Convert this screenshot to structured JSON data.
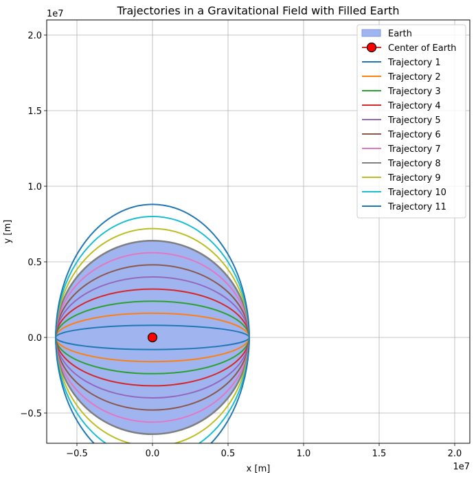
{
  "chart_data": {
    "type": "line",
    "title": "Trajectories in a Gravitational Field with Filled Earth",
    "xlabel": "x [m]",
    "ylabel": "y [m]",
    "x_offset_label": "1e7",
    "y_offset_label": "1e7",
    "xlim": [
      -0.7,
      2.1
    ],
    "ylim": [
      -0.7,
      2.1
    ],
    "x_ticks": [
      -0.5,
      0.0,
      0.5,
      1.0,
      1.5,
      2.0
    ],
    "x_tick_labels": [
      "−0.5",
      "0.0",
      "0.5",
      "1.0",
      "1.5",
      "2.0"
    ],
    "y_ticks": [
      -0.5,
      0.0,
      0.5,
      1.0,
      1.5,
      2.0
    ],
    "y_tick_labels": [
      "−0.5",
      "0.0",
      "0.5",
      "1.0",
      "1.5",
      "2.0"
    ],
    "grid": true,
    "legend_position": "top-right",
    "earth": {
      "label": "Earth",
      "radius": 0.64,
      "fill_color": "#a0b4f0",
      "edge_color": "#7f7f7f"
    },
    "center": {
      "label": "Center of Earth",
      "x": 0.0,
      "y": 0.0,
      "marker_color": "#ff0000",
      "line_color": "#d62728"
    },
    "series": [
      {
        "name": "Trajectory 1",
        "color": "#1f77b4",
        "semi_x": 0.64,
        "semi_y": 0.08
      },
      {
        "name": "Trajectory 2",
        "color": "#ff7f0e",
        "semi_x": 0.64,
        "semi_y": 0.16
      },
      {
        "name": "Trajectory 3",
        "color": "#2ca02c",
        "semi_x": 0.64,
        "semi_y": 0.24
      },
      {
        "name": "Trajectory 4",
        "color": "#d62728",
        "semi_x": 0.64,
        "semi_y": 0.32
      },
      {
        "name": "Trajectory 5",
        "color": "#9467bd",
        "semi_x": 0.64,
        "semi_y": 0.4
      },
      {
        "name": "Trajectory 6",
        "color": "#8c564b",
        "semi_x": 0.64,
        "semi_y": 0.48
      },
      {
        "name": "Trajectory 7",
        "color": "#e377c2",
        "semi_x": 0.64,
        "semi_y": 0.56
      },
      {
        "name": "Trajectory 8",
        "color": "#7f7f7f",
        "semi_x": 0.64,
        "semi_y": 0.64
      },
      {
        "name": "Trajectory 9",
        "color": "#bcbd22",
        "semi_x": 0.64,
        "semi_y": 0.72
      },
      {
        "name": "Trajectory 10",
        "color": "#17becf",
        "semi_x": 0.64,
        "semi_y": 0.8
      },
      {
        "name": "Trajectory 11",
        "color": "#1f77b4",
        "semi_x": 0.64,
        "semi_y": 0.88
      }
    ]
  }
}
